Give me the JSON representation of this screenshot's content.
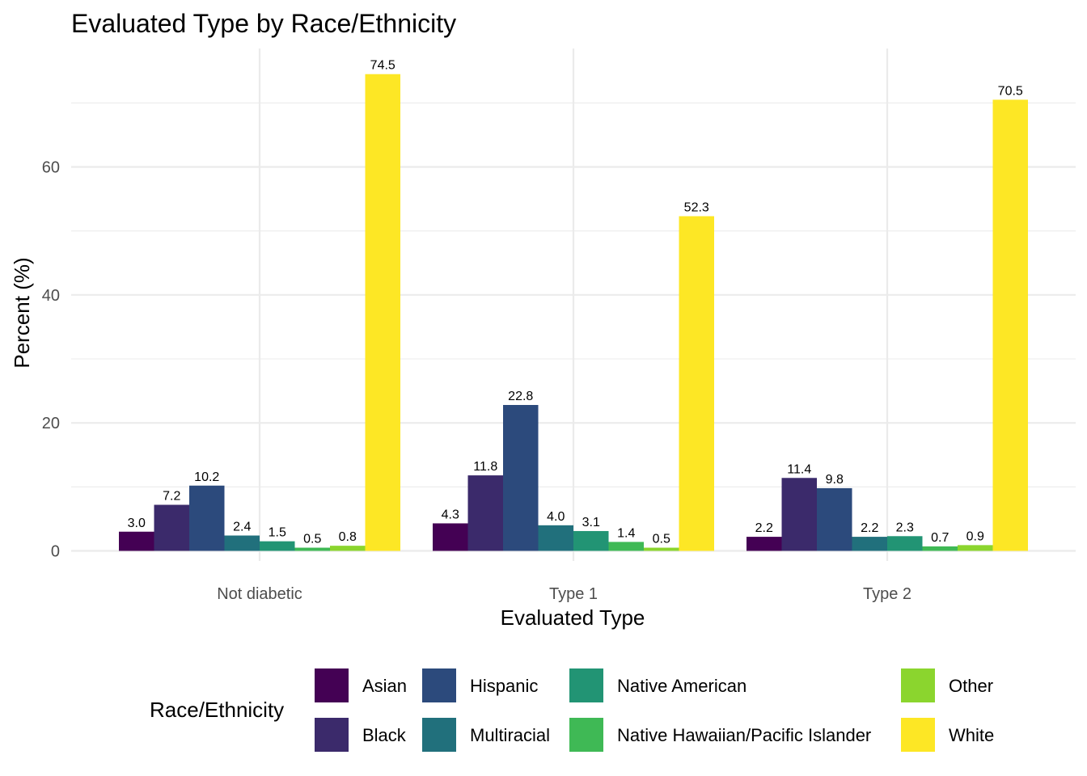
{
  "chart_data": {
    "type": "bar",
    "title": "Evaluated Type by Race/Ethnicity",
    "xlabel": "Evaluated Type",
    "ylabel": "Percent (%)",
    "categories": [
      "Not diabetic",
      "Type 1",
      "Type 2"
    ],
    "ylim": [
      0,
      78
    ],
    "yticks": [
      0,
      20,
      40,
      60
    ],
    "grid": true,
    "legend": {
      "title": "Race/Ethnicity",
      "position": "bottom"
    },
    "series": [
      {
        "name": "Asian",
        "color": "#440154",
        "values": [
          3.0,
          4.3,
          2.2
        ],
        "labels": [
          "3.0",
          "4.3",
          "2.2"
        ]
      },
      {
        "name": "Black",
        "color": "#3B2A6B",
        "values": [
          7.2,
          11.8,
          11.4
        ],
        "labels": [
          "7.2",
          "11.8",
          "11.4"
        ]
      },
      {
        "name": "Hispanic",
        "color": "#2C4A7C",
        "values": [
          10.2,
          22.8,
          9.8
        ],
        "labels": [
          "10.2",
          "22.8",
          "9.8"
        ]
      },
      {
        "name": "Multiracial",
        "color": "#21707C",
        "values": [
          2.4,
          4.0,
          2.2
        ],
        "labels": [
          "2.4",
          "4.0",
          "2.2"
        ]
      },
      {
        "name": "Native American",
        "color": "#229474",
        "values": [
          1.5,
          3.1,
          2.3
        ],
        "labels": [
          "1.5",
          "3.1",
          "2.3"
        ]
      },
      {
        "name": "Native Hawaiian/Pacific Islander",
        "color": "#3FB955",
        "values": [
          0.5,
          1.4,
          0.7
        ],
        "labels": [
          "0.5",
          "1.4",
          "0.7"
        ]
      },
      {
        "name": "Other",
        "color": "#8BD52E",
        "values": [
          0.8,
          0.5,
          0.9
        ],
        "labels": [
          "0.8",
          "0.5",
          "0.9"
        ]
      },
      {
        "name": "White",
        "color": "#FDE725",
        "values": [
          74.5,
          52.3,
          70.5
        ],
        "labels": [
          "74.5",
          "52.3",
          "70.5"
        ]
      }
    ]
  }
}
